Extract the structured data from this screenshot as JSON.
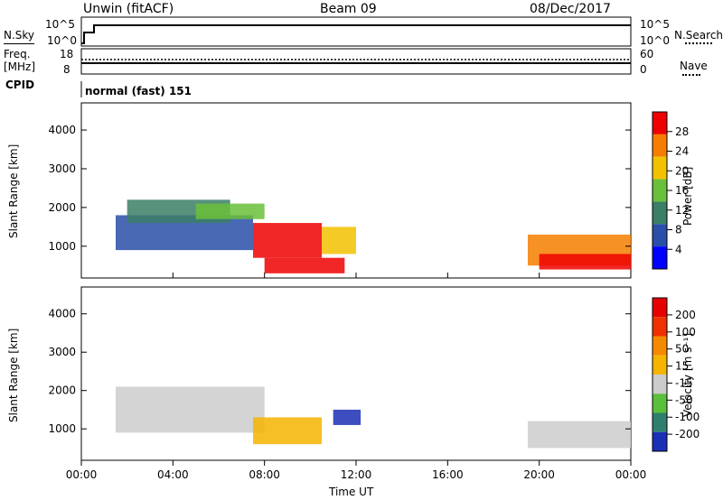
{
  "header": {
    "station": "Unwin (fitACF)",
    "beam": "Beam 09",
    "date": "08/Dec/2017"
  },
  "sky_panel": {
    "left_label": "N.Sky",
    "right_label": "N.Search",
    "left_ticks": [
      "10^5",
      "10^0"
    ],
    "right_ticks": [
      "10^5",
      "10^0"
    ]
  },
  "freq_panel": {
    "left_label_1": "Freq.",
    "left_label_2": "[MHz]",
    "left_ticks": [
      "18",
      "8"
    ],
    "right_ticks": [
      "60",
      "0"
    ],
    "right_label": "Nave",
    "cpid_label": "CPID",
    "cpid_value": "normal (fast) 151"
  },
  "chart_data": [
    {
      "type": "heatmap",
      "name": "power",
      "ylabel": "Slant Range [km]",
      "yticks": [
        "4000",
        "3000",
        "2000",
        "1000"
      ],
      "colorbar_label": "Power [dB]",
      "colorbar_ticks": [
        "28",
        "24",
        "20",
        "16",
        "12",
        "8",
        "4"
      ],
      "colors": [
        "#0000ff",
        "#2a4fa8",
        "#3b7f66",
        "#6abf3a",
        "#f2c200",
        "#f57e00",
        "#ee0000"
      ],
      "regions": [
        {
          "t0": 1.5,
          "t1": 7.5,
          "r0": 900,
          "r1": 1800,
          "level": 1
        },
        {
          "t0": 2.0,
          "t1": 6.5,
          "r0": 1600,
          "r1": 2200,
          "level": 2
        },
        {
          "t0": 5.0,
          "t1": 8.0,
          "r0": 1700,
          "r1": 2100,
          "level": 3
        },
        {
          "t0": 7.5,
          "t1": 10.5,
          "r0": 700,
          "r1": 1600,
          "level": 6
        },
        {
          "t0": 8.0,
          "t1": 11.5,
          "r0": 300,
          "r1": 700,
          "level": 6
        },
        {
          "t0": 10.5,
          "t1": 12.0,
          "r0": 800,
          "r1": 1500,
          "level": 4
        },
        {
          "t0": 19.5,
          "t1": 24.0,
          "r0": 500,
          "r1": 1300,
          "level": 5
        },
        {
          "t0": 20.0,
          "t1": 24.0,
          "r0": 400,
          "r1": 800,
          "level": 6
        }
      ]
    },
    {
      "type": "heatmap",
      "name": "velocity",
      "ylabel": "Slant Range [km]",
      "yticks": [
        "4000",
        "3000",
        "2000",
        "1000"
      ],
      "colorbar_label": "Velocity [m s⁻¹]",
      "colorbar_ticks": [
        "200",
        "100",
        "50",
        "15",
        "-15",
        "-50",
        "-100",
        "-200"
      ],
      "colors": [
        "#1a2fb5",
        "#2f7f6f",
        "#5abf3a",
        "#cccccc",
        "#f5b400",
        "#f58a00",
        "#f03000",
        "#e60000"
      ],
      "regions": [
        {
          "t0": 1.5,
          "t1": 8.0,
          "r0": 900,
          "r1": 2100,
          "level": 3
        },
        {
          "t0": 7.5,
          "t1": 10.5,
          "r0": 600,
          "r1": 1300,
          "level": 4
        },
        {
          "t0": 11.0,
          "t1": 12.2,
          "r0": 1100,
          "r1": 1500,
          "level": 0
        },
        {
          "t0": 19.5,
          "t1": 24.0,
          "r0": 500,
          "r1": 1200,
          "level": 3
        }
      ]
    }
  ],
  "x_axis": {
    "ticks": [
      "00:00",
      "04:00",
      "08:00",
      "12:00",
      "16:00",
      "20:00",
      "00:00"
    ],
    "label": "Time UT"
  }
}
